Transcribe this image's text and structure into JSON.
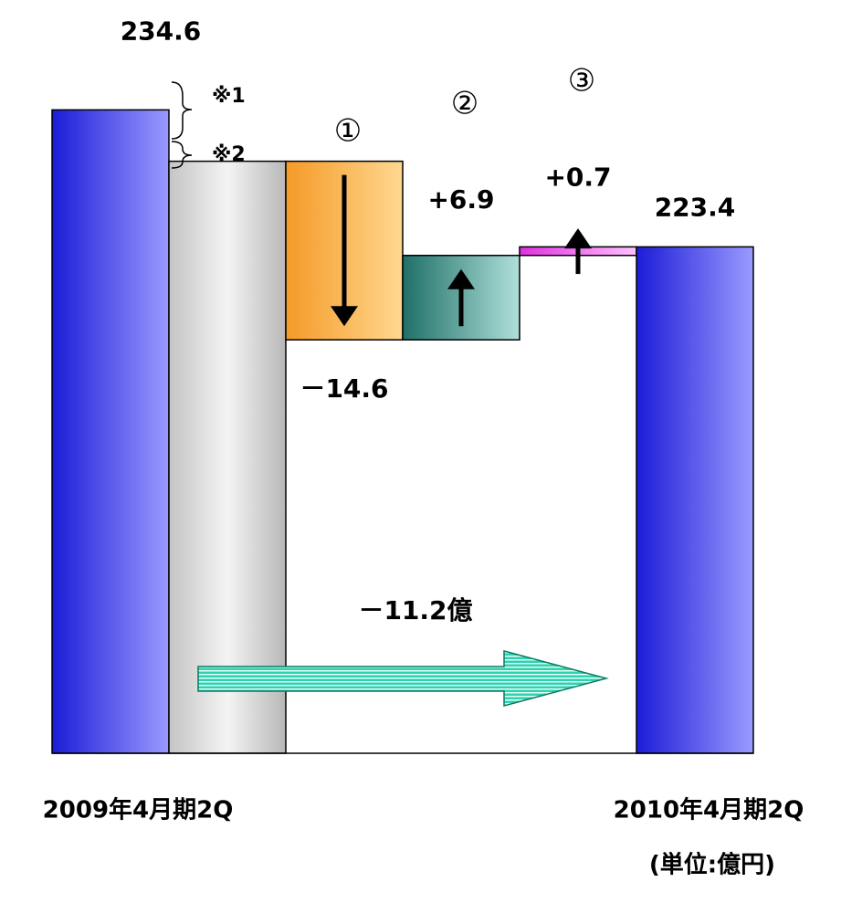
{
  "chart_data": {
    "type": "waterfall",
    "categories": [
      "2009年4月期2Q",
      null,
      "①",
      "②",
      "③",
      "2010年4月期2Q"
    ],
    "values": [
      234.6,
      230.4,
      -14.6,
      6.9,
      0.7,
      223.4
    ],
    "value_labels": [
      "234.6",
      null,
      "－14.6",
      "+6.9",
      "+0.7",
      "223.4"
    ],
    "measures": [
      "absolute",
      "absolute",
      "relative",
      "relative",
      "relative",
      "absolute"
    ],
    "colors": [
      "blue",
      "gray",
      "orange",
      "teal",
      "pink",
      "blue"
    ],
    "ylim": [
      182,
      240
    ],
    "annotations": [
      "※1",
      "※2",
      "－11.2億"
    ],
    "unit": "(単位:億円)"
  }
}
